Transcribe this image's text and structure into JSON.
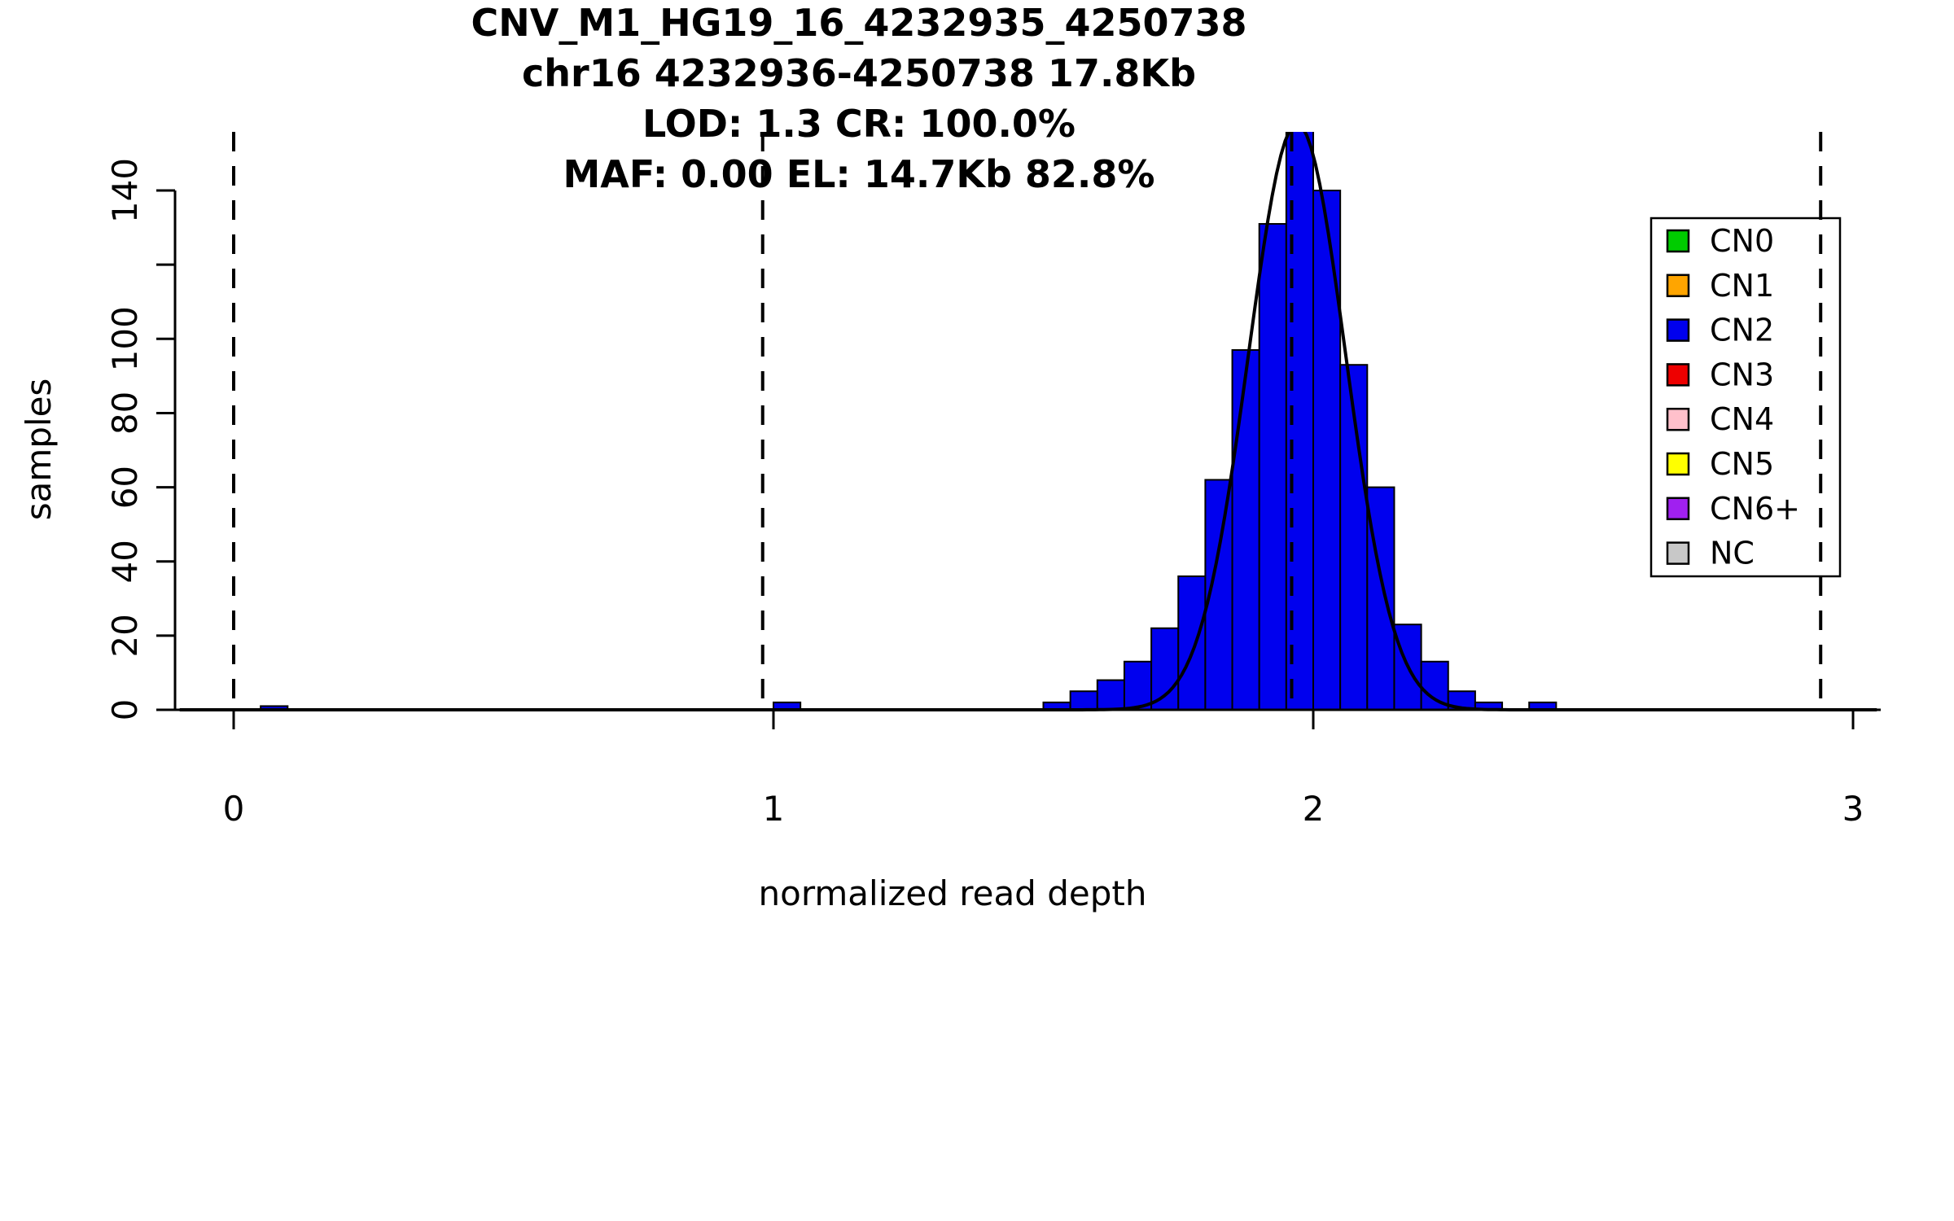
{
  "titles": [
    "CNV_M1_HG19_16_4232935_4250738",
    "chr16 4232936-4250738 17.8Kb",
    "LOD: 1.3 CR: 100.0%",
    "MAF: 0.00 EL: 14.7Kb 82.8%"
  ],
  "axes": {
    "xlabel": "normalized read depth",
    "ylabel": "samples"
  },
  "chart_data": {
    "type": "bar",
    "subtype": "histogram-with-density-curve",
    "title": "CNV_M1_HG19_16_4232935_4250738",
    "xlabel": "normalized read depth",
    "ylabel": "samples",
    "xlim": [
      -0.11,
      3.05
    ],
    "ylim": [
      0,
      155
    ],
    "grid": false,
    "bin_width": 0.05,
    "bar_color": "#0000EE",
    "bar_border_color": "#000000",
    "curve_color": "#000000",
    "dashed_line_color": "#000000",
    "bars": [
      {
        "x": 0.05,
        "count": 1
      },
      {
        "x": 1.0,
        "count": 2
      },
      {
        "x": 1.5,
        "count": 2
      },
      {
        "x": 1.55,
        "count": 5
      },
      {
        "x": 1.6,
        "count": 8
      },
      {
        "x": 1.65,
        "count": 13
      },
      {
        "x": 1.7,
        "count": 22
      },
      {
        "x": 1.75,
        "count": 36
      },
      {
        "x": 1.8,
        "count": 62
      },
      {
        "x": 1.85,
        "count": 97
      },
      {
        "x": 1.9,
        "count": 131
      },
      {
        "x": 1.95,
        "count": 160
      },
      {
        "x": 2.0,
        "count": 140
      },
      {
        "x": 2.05,
        "count": 93
      },
      {
        "x": 2.1,
        "count": 60
      },
      {
        "x": 2.15,
        "count": 23
      },
      {
        "x": 2.2,
        "count": 13
      },
      {
        "x": 2.25,
        "count": 5
      },
      {
        "x": 2.3,
        "count": 2
      },
      {
        "x": 2.4,
        "count": 2
      }
    ],
    "curve": {
      "shape": "gaussian",
      "mean": 1.97,
      "sd": 0.09,
      "amplitude": 158,
      "x_range": [
        -0.1,
        3.05
      ]
    },
    "dashed_lines_x": [
      0,
      0.98,
      1.96,
      2.94
    ],
    "x_ticks": [
      {
        "value": 0,
        "label": "0"
      },
      {
        "value": 1,
        "label": "1"
      },
      {
        "value": 2,
        "label": "2"
      },
      {
        "value": 3,
        "label": "3"
      }
    ],
    "y_ticks": [
      {
        "value": 0,
        "label": "0"
      },
      {
        "value": 20,
        "label": "20"
      },
      {
        "value": 40,
        "label": "40"
      },
      {
        "value": 60,
        "label": "60"
      },
      {
        "value": 80,
        "label": "80"
      },
      {
        "value": 100,
        "label": "100"
      },
      {
        "value": 120,
        "label": ""
      },
      {
        "value": 140,
        "label": "140"
      }
    ],
    "legend": {
      "position": "top-right",
      "items": [
        {
          "label": "CN0",
          "color": "#00CC00"
        },
        {
          "label": "CN1",
          "color": "#FFA500"
        },
        {
          "label": "CN2",
          "color": "#0000EE"
        },
        {
          "label": "CN3",
          "color": "#EE0000"
        },
        {
          "label": "CN4",
          "color": "#FFC0CB"
        },
        {
          "label": "CN5",
          "color": "#FFFF00"
        },
        {
          "label": "CN6+",
          "color": "#A020F0"
        },
        {
          "label": "NC",
          "color": "#C8C8C8"
        }
      ]
    }
  }
}
